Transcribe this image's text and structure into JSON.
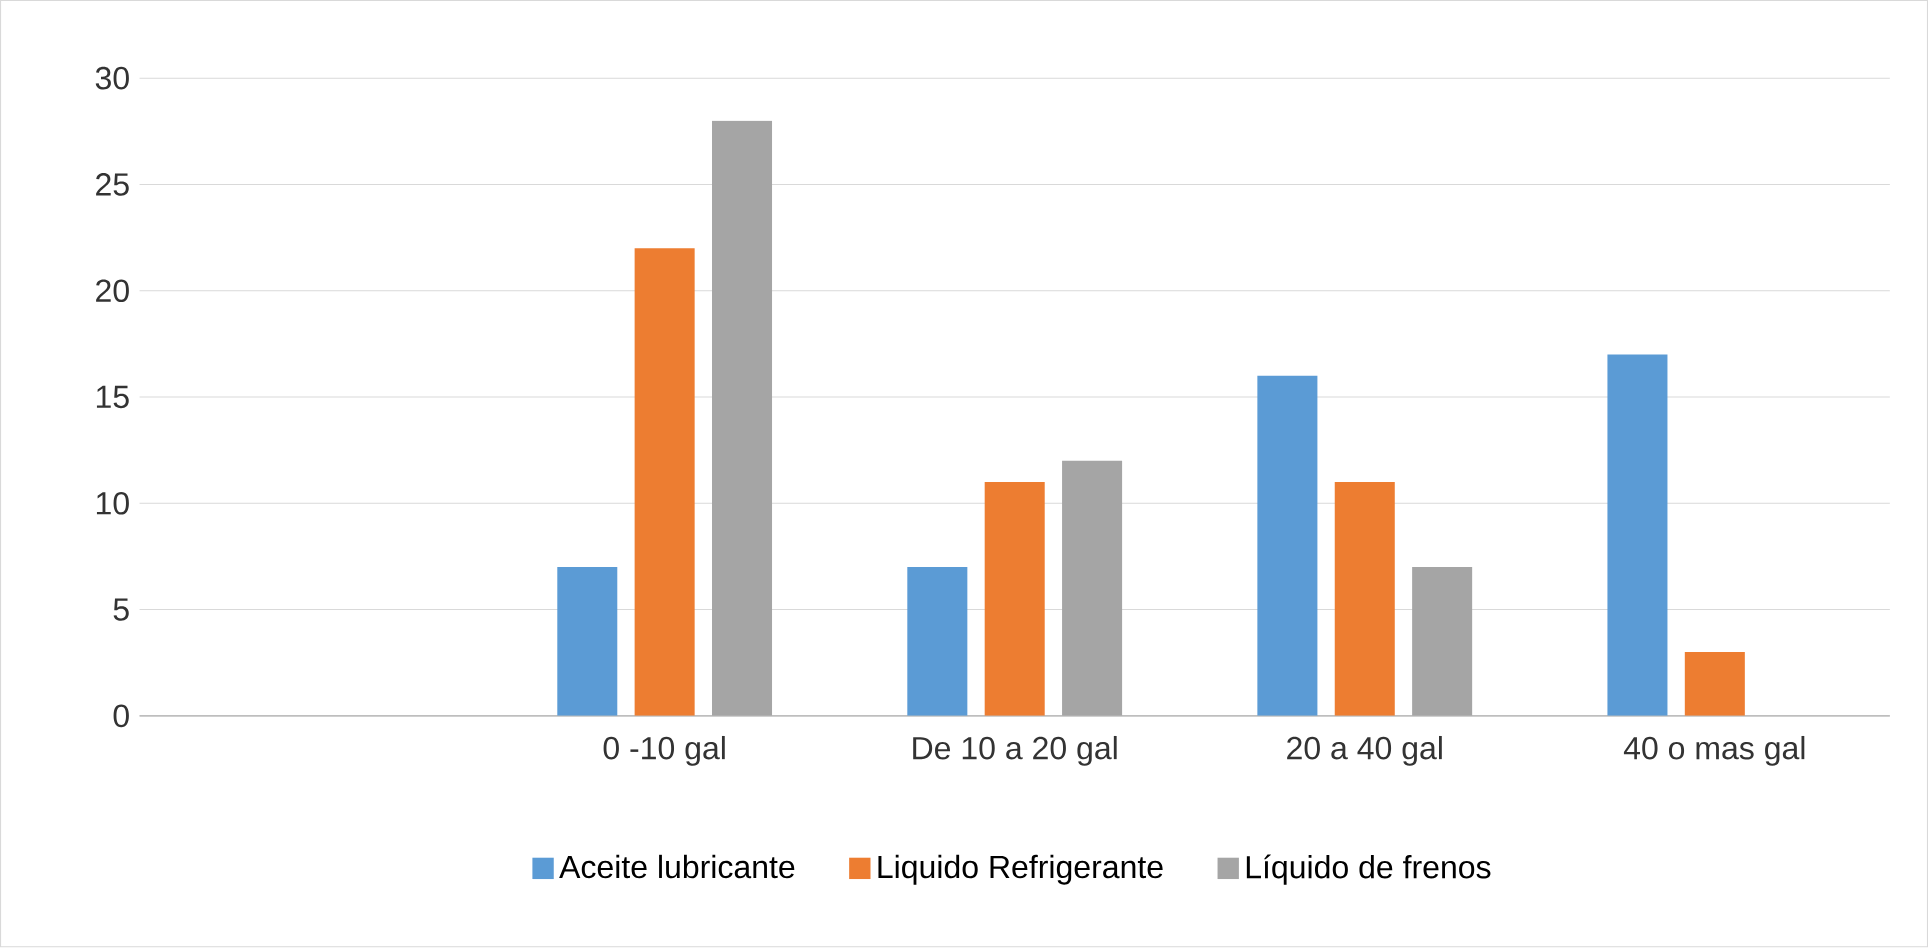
{
  "chart_data": {
    "type": "bar",
    "categories": [
      null,
      "0 -10 gal",
      "De 10 a 20 gal",
      "20 a 40 gal",
      "40 o mas gal"
    ],
    "series": [
      {
        "name": "Aceite lubricante",
        "color": "#5b9bd5",
        "values": [
          null,
          7,
          7,
          16,
          17
        ]
      },
      {
        "name": "Liquido Refrigerante",
        "color": "#ed7d31",
        "values": [
          null,
          22,
          11,
          11,
          3
        ]
      },
      {
        "name": "Líquido de frenos",
        "color": "#a5a5a5",
        "values": [
          null,
          28,
          12,
          7,
          null
        ]
      }
    ],
    "ylim": [
      0,
      30
    ],
    "yticks": [
      0,
      5,
      10,
      15,
      20,
      25,
      30
    ],
    "grid": "y",
    "legend": "bottom"
  }
}
